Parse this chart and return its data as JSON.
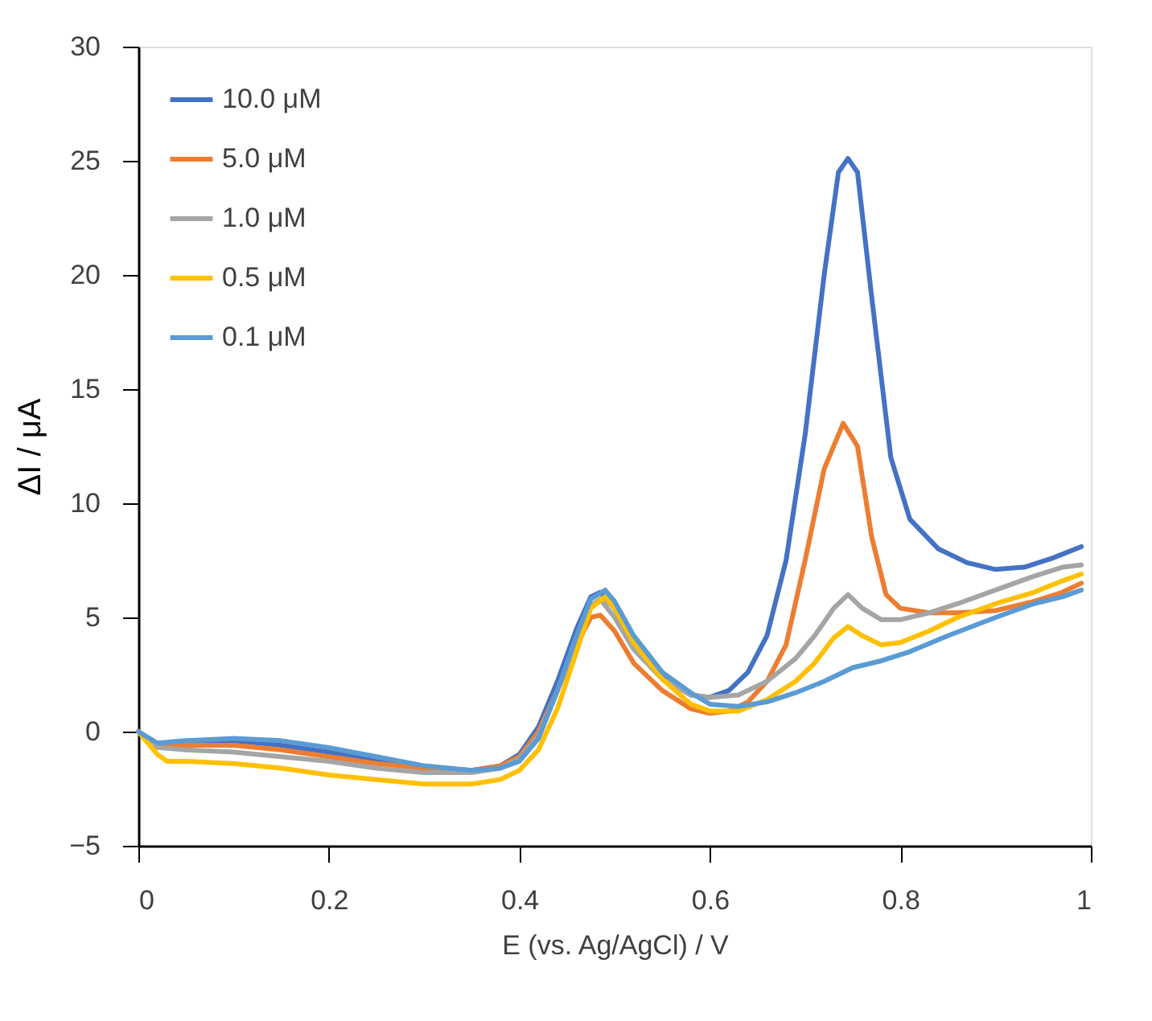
{
  "chart_data": {
    "type": "line",
    "xlabel": "E (vs. Ag/AgCl) / V",
    "ylabel": "ΔI  / μA",
    "xlim": [
      0,
      1
    ],
    "ylim": [
      -5,
      30
    ],
    "xticks": [
      0,
      0.2,
      0.4,
      0.6,
      0.8,
      1
    ],
    "yticks": [
      -5,
      0,
      5,
      10,
      15,
      20,
      25,
      30
    ],
    "grid": false,
    "legend": "top left",
    "marker": "none",
    "line_style": "solid",
    "series": [
      {
        "name": "10.0 μM",
        "color": "#4472c4",
        "x": [
          0,
          0.02,
          0.05,
          0.1,
          0.15,
          0.2,
          0.25,
          0.3,
          0.35,
          0.38,
          0.4,
          0.42,
          0.44,
          0.46,
          0.475,
          0.485,
          0.5,
          0.52,
          0.55,
          0.58,
          0.6,
          0.62,
          0.64,
          0.66,
          0.68,
          0.7,
          0.72,
          0.735,
          0.745,
          0.755,
          0.77,
          0.79,
          0.81,
          0.84,
          0.87,
          0.9,
          0.93,
          0.96,
          0.99
        ],
        "values": [
          0,
          -0.6,
          -0.5,
          -0.4,
          -0.6,
          -0.9,
          -1.3,
          -1.6,
          -1.7,
          -1.5,
          -1.0,
          0.2,
          2.2,
          4.5,
          5.9,
          6.1,
          5.4,
          3.8,
          2.4,
          1.6,
          1.5,
          1.8,
          2.6,
          4.2,
          7.5,
          13,
          20,
          24.5,
          25.1,
          24.5,
          19,
          12,
          9.3,
          8.0,
          7.4,
          7.1,
          7.2,
          7.6,
          8.1
        ]
      },
      {
        "name": "5.0 μM",
        "color": "#ed7d31",
        "x": [
          0,
          0.02,
          0.05,
          0.1,
          0.15,
          0.2,
          0.25,
          0.3,
          0.35,
          0.38,
          0.4,
          0.42,
          0.44,
          0.46,
          0.475,
          0.485,
          0.5,
          0.52,
          0.55,
          0.58,
          0.6,
          0.62,
          0.64,
          0.66,
          0.68,
          0.7,
          0.72,
          0.74,
          0.755,
          0.77,
          0.785,
          0.8,
          0.83,
          0.86,
          0.9,
          0.94,
          0.97,
          0.99
        ],
        "values": [
          0,
          -0.6,
          -0.6,
          -0.6,
          -0.8,
          -1.1,
          -1.4,
          -1.6,
          -1.7,
          -1.5,
          -1.1,
          0,
          1.8,
          3.8,
          5.0,
          5.1,
          4.4,
          3.0,
          1.8,
          1.0,
          0.8,
          0.9,
          1.3,
          2.2,
          3.8,
          7.5,
          11.5,
          13.5,
          12.5,
          8.5,
          6.0,
          5.4,
          5.2,
          5.2,
          5.3,
          5.7,
          6.1,
          6.5
        ]
      },
      {
        "name": "1.0 μM",
        "color": "#a5a5a5",
        "x": [
          0,
          0.02,
          0.05,
          0.1,
          0.15,
          0.2,
          0.25,
          0.3,
          0.35,
          0.38,
          0.4,
          0.42,
          0.44,
          0.46,
          0.475,
          0.485,
          0.5,
          0.52,
          0.55,
          0.58,
          0.6,
          0.63,
          0.66,
          0.69,
          0.71,
          0.73,
          0.745,
          0.76,
          0.78,
          0.8,
          0.83,
          0.86,
          0.9,
          0.94,
          0.97,
          0.99
        ],
        "values": [
          0,
          -0.7,
          -0.8,
          -0.9,
          -1.1,
          -1.3,
          -1.6,
          -1.8,
          -1.8,
          -1.6,
          -1.2,
          -0.2,
          1.8,
          4.0,
          5.5,
          5.8,
          5.0,
          3.6,
          2.3,
          1.6,
          1.5,
          1.6,
          2.2,
          3.2,
          4.2,
          5.4,
          6.0,
          5.4,
          4.9,
          4.9,
          5.2,
          5.6,
          6.2,
          6.8,
          7.2,
          7.3
        ]
      },
      {
        "name": "0.5 μM",
        "color": "#ffc000",
        "x": [
          0,
          0.02,
          0.03,
          0.05,
          0.1,
          0.15,
          0.2,
          0.25,
          0.3,
          0.35,
          0.38,
          0.4,
          0.42,
          0.44,
          0.46,
          0.475,
          0.49,
          0.5,
          0.52,
          0.55,
          0.58,
          0.6,
          0.63,
          0.66,
          0.69,
          0.71,
          0.73,
          0.745,
          0.76,
          0.78,
          0.8,
          0.83,
          0.86,
          0.9,
          0.94,
          0.97,
          0.99
        ],
        "values": [
          0,
          -1.0,
          -1.3,
          -1.3,
          -1.4,
          -1.6,
          -1.9,
          -2.1,
          -2.3,
          -2.3,
          -2.1,
          -1.7,
          -0.8,
          1.0,
          3.5,
          5.4,
          5.9,
          5.4,
          3.9,
          2.3,
          1.2,
          0.9,
          0.9,
          1.4,
          2.2,
          3.0,
          4.1,
          4.6,
          4.2,
          3.8,
          3.9,
          4.4,
          5.0,
          5.6,
          6.1,
          6.6,
          6.9
        ]
      },
      {
        "name": "0.1 μM",
        "color": "#5b9bd5",
        "x": [
          0,
          0.02,
          0.05,
          0.1,
          0.15,
          0.2,
          0.25,
          0.3,
          0.35,
          0.38,
          0.4,
          0.42,
          0.44,
          0.46,
          0.475,
          0.49,
          0.5,
          0.52,
          0.55,
          0.58,
          0.6,
          0.63,
          0.66,
          0.69,
          0.72,
          0.75,
          0.78,
          0.81,
          0.85,
          0.9,
          0.94,
          0.97,
          0.99
        ],
        "values": [
          0,
          -0.5,
          -0.4,
          -0.3,
          -0.4,
          -0.7,
          -1.1,
          -1.5,
          -1.7,
          -1.6,
          -1.3,
          -0.3,
          1.8,
          4.2,
          5.8,
          6.2,
          5.7,
          4.2,
          2.6,
          1.7,
          1.2,
          1.1,
          1.3,
          1.7,
          2.2,
          2.8,
          3.1,
          3.5,
          4.2,
          5.0,
          5.6,
          5.9,
          6.2
        ]
      }
    ]
  }
}
